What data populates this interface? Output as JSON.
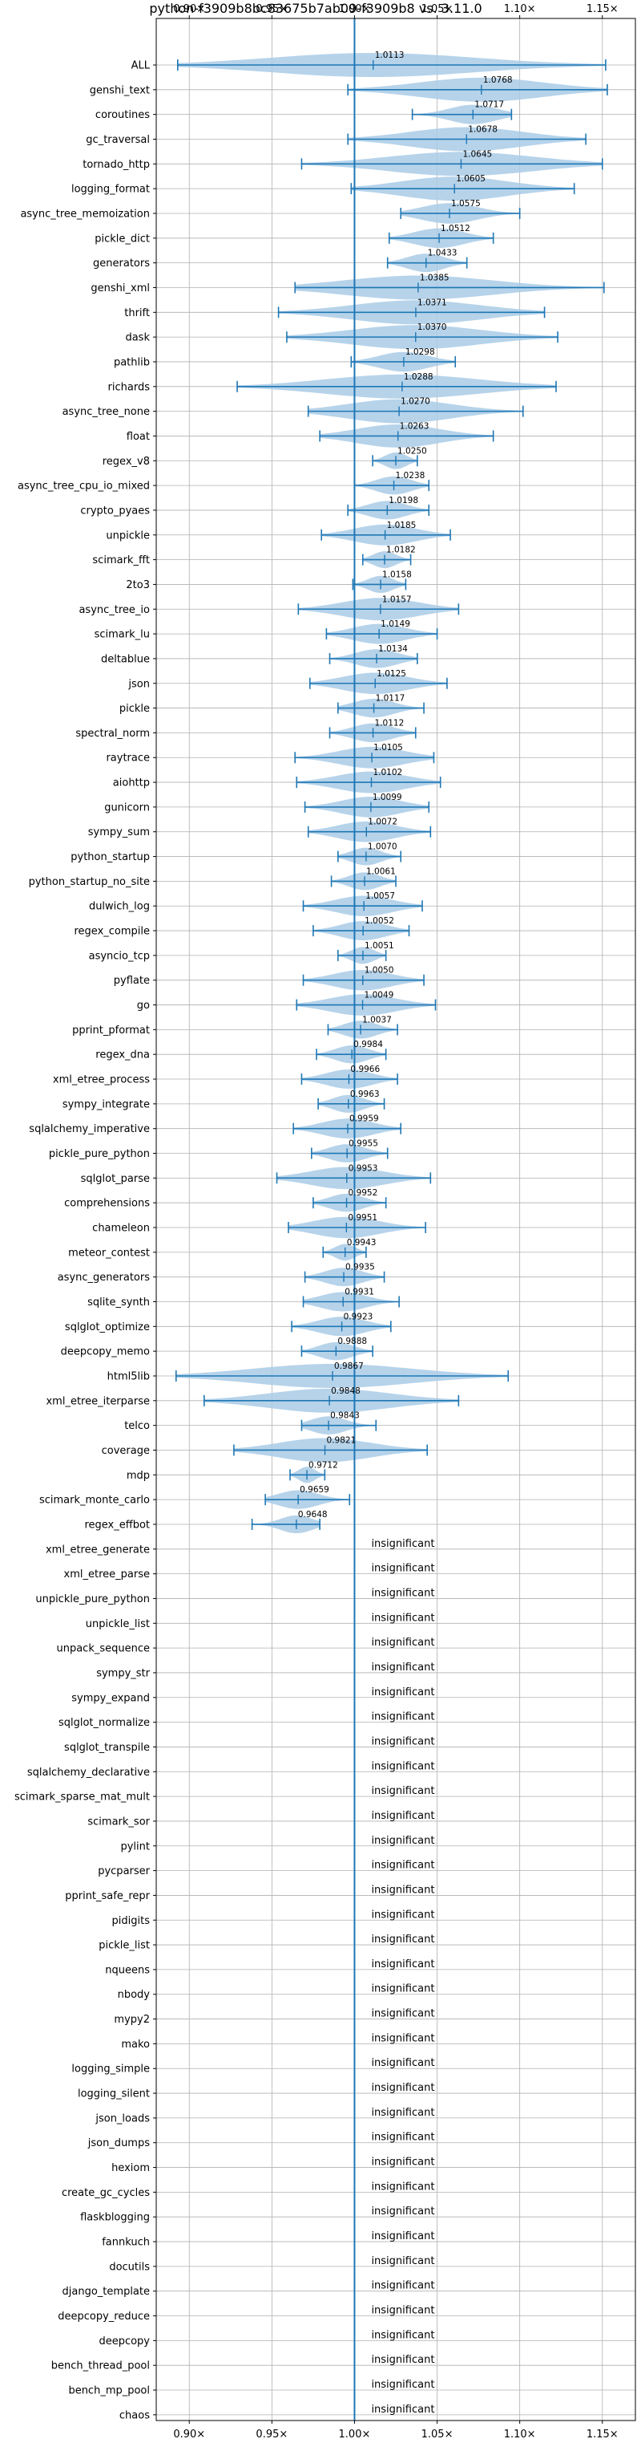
{
  "chart_data": {
    "type": "violin",
    "title": "python-f3909b8bc83675b7ab09-f3909b8 vs. 3.11.0",
    "xlim": [
      0.88,
      1.17
    ],
    "xticks": [
      0.9,
      0.95,
      1.0,
      1.05,
      1.1,
      1.15
    ],
    "xtick_labels": [
      "0.90×",
      "0.95×",
      "1.00×",
      "1.05×",
      "1.10×",
      "1.15×"
    ],
    "reference_line": 1.0,
    "insignificant_label": "insignificant",
    "colors": {
      "violin": "#a9cbe6",
      "line": "#1f77b4",
      "grid": "#b0b0b0"
    },
    "benchmarks": [
      {
        "name": "ALL",
        "mean": 1.0113,
        "mean_label": "1.0113",
        "min": 0.893,
        "max": 1.152
      },
      {
        "name": "genshi_text",
        "mean": 1.0768,
        "mean_label": "1.0768",
        "min": 0.996,
        "max": 1.153
      },
      {
        "name": "coroutines",
        "mean": 1.0717,
        "mean_label": "1.0717",
        "min": 1.035,
        "max": 1.095
      },
      {
        "name": "gc_traversal",
        "mean": 1.0678,
        "mean_label": "1.0678",
        "min": 0.996,
        "max": 1.14
      },
      {
        "name": "tornado_http",
        "mean": 1.0645,
        "mean_label": "1.0645",
        "min": 0.968,
        "max": 1.15
      },
      {
        "name": "logging_format",
        "mean": 1.0605,
        "mean_label": "1.0605",
        "min": 0.998,
        "max": 1.133
      },
      {
        "name": "async_tree_memoization",
        "mean": 1.0575,
        "mean_label": "1.0575",
        "min": 1.028,
        "max": 1.1
      },
      {
        "name": "pickle_dict",
        "mean": 1.0512,
        "mean_label": "1.0512",
        "min": 1.021,
        "max": 1.084
      },
      {
        "name": "generators",
        "mean": 1.0433,
        "mean_label": "1.0433",
        "min": 1.02,
        "max": 1.068
      },
      {
        "name": "genshi_xml",
        "mean": 1.0385,
        "mean_label": "1.0385",
        "min": 0.964,
        "max": 1.151
      },
      {
        "name": "thrift",
        "mean": 1.0371,
        "mean_label": "1.0371",
        "min": 0.954,
        "max": 1.115
      },
      {
        "name": "dask",
        "mean": 1.037,
        "mean_label": "1.0370",
        "min": 0.959,
        "max": 1.123
      },
      {
        "name": "pathlib",
        "mean": 1.0298,
        "mean_label": "1.0298",
        "min": 0.998,
        "max": 1.061
      },
      {
        "name": "richards",
        "mean": 1.0288,
        "mean_label": "1.0288",
        "min": 0.929,
        "max": 1.122
      },
      {
        "name": "async_tree_none",
        "mean": 1.027,
        "mean_label": "1.0270",
        "min": 0.972,
        "max": 1.102
      },
      {
        "name": "float",
        "mean": 1.0263,
        "mean_label": "1.0263",
        "min": 0.979,
        "max": 1.084
      },
      {
        "name": "regex_v8",
        "mean": 1.025,
        "mean_label": "1.0250",
        "min": 1.011,
        "max": 1.038
      },
      {
        "name": "async_tree_cpu_io_mixed",
        "mean": 1.0238,
        "mean_label": "1.0238",
        "min": 1.0,
        "max": 1.045
      },
      {
        "name": "crypto_pyaes",
        "mean": 1.0198,
        "mean_label": "1.0198",
        "min": 0.996,
        "max": 1.045
      },
      {
        "name": "unpickle",
        "mean": 1.0185,
        "mean_label": "1.0185",
        "min": 0.98,
        "max": 1.058
      },
      {
        "name": "scimark_fft",
        "mean": 1.0182,
        "mean_label": "1.0182",
        "min": 1.005,
        "max": 1.034
      },
      {
        "name": "2to3",
        "mean": 1.0158,
        "mean_label": "1.0158",
        "min": 0.999,
        "max": 1.031
      },
      {
        "name": "async_tree_io",
        "mean": 1.0157,
        "mean_label": "1.0157",
        "min": 0.966,
        "max": 1.063
      },
      {
        "name": "scimark_lu",
        "mean": 1.0149,
        "mean_label": "1.0149",
        "min": 0.983,
        "max": 1.05
      },
      {
        "name": "deltablue",
        "mean": 1.0134,
        "mean_label": "1.0134",
        "min": 0.985,
        "max": 1.038
      },
      {
        "name": "json",
        "mean": 1.0125,
        "mean_label": "1.0125",
        "min": 0.973,
        "max": 1.056
      },
      {
        "name": "pickle",
        "mean": 1.0117,
        "mean_label": "1.0117",
        "min": 0.99,
        "max": 1.042
      },
      {
        "name": "spectral_norm",
        "mean": 1.0112,
        "mean_label": "1.0112",
        "min": 0.985,
        "max": 1.037
      },
      {
        "name": "raytrace",
        "mean": 1.0105,
        "mean_label": "1.0105",
        "min": 0.964,
        "max": 1.048
      },
      {
        "name": "aiohttp",
        "mean": 1.0102,
        "mean_label": "1.0102",
        "min": 0.965,
        "max": 1.052
      },
      {
        "name": "gunicorn",
        "mean": 1.0099,
        "mean_label": "1.0099",
        "min": 0.97,
        "max": 1.045
      },
      {
        "name": "sympy_sum",
        "mean": 1.0072,
        "mean_label": "1.0072",
        "min": 0.972,
        "max": 1.046
      },
      {
        "name": "python_startup",
        "mean": 1.007,
        "mean_label": "1.0070",
        "min": 0.99,
        "max": 1.028
      },
      {
        "name": "python_startup_no_site",
        "mean": 1.0061,
        "mean_label": "1.0061",
        "min": 0.986,
        "max": 1.025
      },
      {
        "name": "dulwich_log",
        "mean": 1.0057,
        "mean_label": "1.0057",
        "min": 0.969,
        "max": 1.041
      },
      {
        "name": "regex_compile",
        "mean": 1.0052,
        "mean_label": "1.0052",
        "min": 0.975,
        "max": 1.033
      },
      {
        "name": "asyncio_tcp",
        "mean": 1.0051,
        "mean_label": "1.0051",
        "min": 0.99,
        "max": 1.019
      },
      {
        "name": "pyflate",
        "mean": 1.005,
        "mean_label": "1.0050",
        "min": 0.969,
        "max": 1.042
      },
      {
        "name": "go",
        "mean": 1.0049,
        "mean_label": "1.0049",
        "min": 0.965,
        "max": 1.049
      },
      {
        "name": "pprint_pformat",
        "mean": 1.0037,
        "mean_label": "1.0037",
        "min": 0.984,
        "max": 1.026
      },
      {
        "name": "regex_dna",
        "mean": 0.9984,
        "mean_label": "0.9984",
        "min": 0.977,
        "max": 1.019
      },
      {
        "name": "xml_etree_process",
        "mean": 0.9966,
        "mean_label": "0.9966",
        "min": 0.968,
        "max": 1.026
      },
      {
        "name": "sympy_integrate",
        "mean": 0.9963,
        "mean_label": "0.9963",
        "min": 0.978,
        "max": 1.018
      },
      {
        "name": "sqlalchemy_imperative",
        "mean": 0.9959,
        "mean_label": "0.9959",
        "min": 0.963,
        "max": 1.028
      },
      {
        "name": "pickle_pure_python",
        "mean": 0.9955,
        "mean_label": "0.9955",
        "min": 0.974,
        "max": 1.02
      },
      {
        "name": "sqlglot_parse",
        "mean": 0.9953,
        "mean_label": "0.9953",
        "min": 0.953,
        "max": 1.046
      },
      {
        "name": "comprehensions",
        "mean": 0.9952,
        "mean_label": "0.9952",
        "min": 0.975,
        "max": 1.019
      },
      {
        "name": "chameleon",
        "mean": 0.9951,
        "mean_label": "0.9951",
        "min": 0.96,
        "max": 1.043
      },
      {
        "name": "meteor_contest",
        "mean": 0.9943,
        "mean_label": "0.9943",
        "min": 0.981,
        "max": 1.007
      },
      {
        "name": "async_generators",
        "mean": 0.9935,
        "mean_label": "0.9935",
        "min": 0.97,
        "max": 1.018
      },
      {
        "name": "sqlite_synth",
        "mean": 0.9931,
        "mean_label": "0.9931",
        "min": 0.969,
        "max": 1.027
      },
      {
        "name": "sqlglot_optimize",
        "mean": 0.9923,
        "mean_label": "0.9923",
        "min": 0.962,
        "max": 1.022
      },
      {
        "name": "deepcopy_memo",
        "mean": 0.9888,
        "mean_label": "0.9888",
        "min": 0.968,
        "max": 1.011
      },
      {
        "name": "html5lib",
        "mean": 0.9867,
        "mean_label": "0.9867",
        "min": 0.892,
        "max": 1.093
      },
      {
        "name": "xml_etree_iterparse",
        "mean": 0.9848,
        "mean_label": "0.9848",
        "min": 0.909,
        "max": 1.063
      },
      {
        "name": "telco",
        "mean": 0.9843,
        "mean_label": "0.9843",
        "min": 0.968,
        "max": 1.013
      },
      {
        "name": "coverage",
        "mean": 0.9821,
        "mean_label": "0.9821",
        "min": 0.927,
        "max": 1.044
      },
      {
        "name": "mdp",
        "mean": 0.9712,
        "mean_label": "0.9712",
        "min": 0.961,
        "max": 0.982
      },
      {
        "name": "scimark_monte_carlo",
        "mean": 0.9659,
        "mean_label": "0.9659",
        "min": 0.946,
        "max": 0.997
      },
      {
        "name": "regex_effbot",
        "mean": 0.9648,
        "mean_label": "0.9648",
        "min": 0.938,
        "max": 0.979
      },
      {
        "name": "xml_etree_generate",
        "insignificant": true
      },
      {
        "name": "xml_etree_parse",
        "insignificant": true
      },
      {
        "name": "unpickle_pure_python",
        "insignificant": true
      },
      {
        "name": "unpickle_list",
        "insignificant": true
      },
      {
        "name": "unpack_sequence",
        "insignificant": true
      },
      {
        "name": "sympy_str",
        "insignificant": true
      },
      {
        "name": "sympy_expand",
        "insignificant": true
      },
      {
        "name": "sqlglot_normalize",
        "insignificant": true
      },
      {
        "name": "sqlglot_transpile",
        "insignificant": true
      },
      {
        "name": "sqlalchemy_declarative",
        "insignificant": true
      },
      {
        "name": "scimark_sparse_mat_mult",
        "insignificant": true
      },
      {
        "name": "scimark_sor",
        "insignificant": true
      },
      {
        "name": "pylint",
        "insignificant": true
      },
      {
        "name": "pycparser",
        "insignificant": true
      },
      {
        "name": "pprint_safe_repr",
        "insignificant": true
      },
      {
        "name": "pidigits",
        "insignificant": true
      },
      {
        "name": "pickle_list",
        "insignificant": true
      },
      {
        "name": "nqueens",
        "insignificant": true
      },
      {
        "name": "nbody",
        "insignificant": true
      },
      {
        "name": "mypy2",
        "insignificant": true
      },
      {
        "name": "mako",
        "insignificant": true
      },
      {
        "name": "logging_simple",
        "insignificant": true
      },
      {
        "name": "logging_silent",
        "insignificant": true
      },
      {
        "name": "json_loads",
        "insignificant": true
      },
      {
        "name": "json_dumps",
        "insignificant": true
      },
      {
        "name": "hexiom",
        "insignificant": true
      },
      {
        "name": "create_gc_cycles",
        "insignificant": true
      },
      {
        "name": "flaskblogging",
        "insignificant": true
      },
      {
        "name": "fannkuch",
        "insignificant": true
      },
      {
        "name": "docutils",
        "insignificant": true
      },
      {
        "name": "django_template",
        "insignificant": true
      },
      {
        "name": "deepcopy_reduce",
        "insignificant": true
      },
      {
        "name": "deepcopy",
        "insignificant": true
      },
      {
        "name": "bench_thread_pool",
        "insignificant": true
      },
      {
        "name": "bench_mp_pool",
        "insignificant": true
      },
      {
        "name": "chaos",
        "insignificant": true
      }
    ]
  }
}
